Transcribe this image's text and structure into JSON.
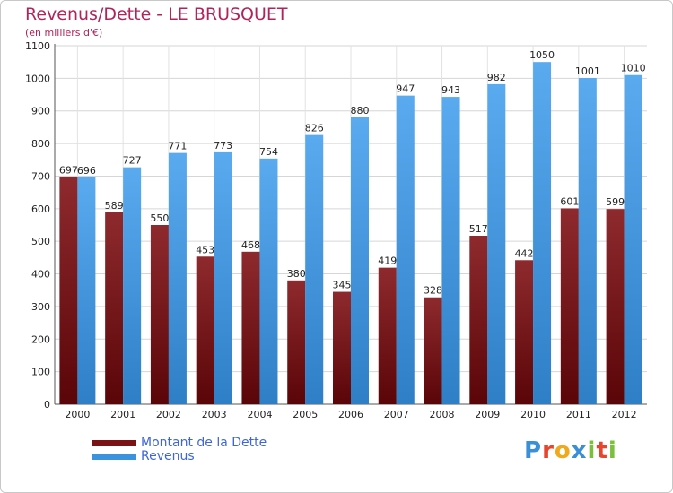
{
  "chart_data": {
    "type": "bar",
    "title": "Revenus/Dette - LE BRUSQUET",
    "subtitle": "(en milliers d'€)",
    "categories": [
      "2000",
      "2001",
      "2002",
      "2003",
      "2004",
      "2005",
      "2006",
      "2007",
      "2008",
      "2009",
      "2010",
      "2011",
      "2012"
    ],
    "series": [
      {
        "name": "Montant de la Dette",
        "color": "#7a1216",
        "values": [
          697,
          589,
          550,
          453,
          468,
          380,
          345,
          419,
          328,
          517,
          442,
          601,
          599
        ]
      },
      {
        "name": "Revenus",
        "color": "#3a93dc",
        "values": [
          696,
          727,
          771,
          773,
          754,
          826,
          880,
          947,
          943,
          982,
          1050,
          1001,
          1010
        ]
      }
    ],
    "ylim": [
      0,
      1100
    ],
    "yticks": [
      0,
      100,
      200,
      300,
      400,
      500,
      600,
      700,
      800,
      900,
      1000,
      1100
    ],
    "grid": true,
    "legend": "bottom-left"
  },
  "logo": {
    "letters": [
      {
        "char": "P",
        "color": "#3a8fd6"
      },
      {
        "char": "r",
        "color": "#e8452c"
      },
      {
        "char": "o",
        "color": "#f2a81d"
      },
      {
        "char": "x",
        "color": "#3a8fd6"
      },
      {
        "char": "i",
        "color": "#7bbf3a"
      },
      {
        "char": "t",
        "color": "#e8452c"
      },
      {
        "char": "i",
        "color": "#7bbf3a"
      }
    ]
  }
}
